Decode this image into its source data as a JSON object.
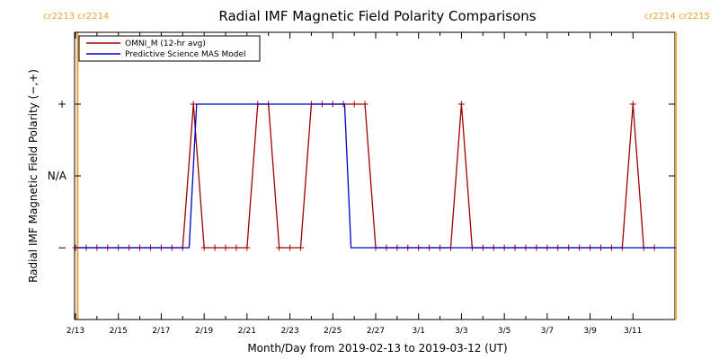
{
  "chart_data": {
    "type": "line",
    "title": "Radial IMF Magnetic Field Polarity Comparisons",
    "xlabel": "Month/Day from 2019-02-13 to 2019-03-12 (UT)",
    "ylabel": "Radial IMF Magnetic Field Polarity (−,+)",
    "x_tick_labels": [
      "2/13",
      "2/15",
      "2/17",
      "2/19",
      "2/21",
      "2/23",
      "2/25",
      "2/27",
      "3/1",
      "3/3",
      "3/5",
      "3/7",
      "3/9",
      "3/11"
    ],
    "y_tick_labels": [
      "−",
      "N/A",
      "+"
    ],
    "y_categories": [
      -1,
      0,
      1
    ],
    "xlim_days": [
      0,
      28
    ],
    "ylim": [
      -2,
      2
    ],
    "x_unit": "days since 2019-02-13 00:00 UT",
    "cr_markers": [
      {
        "day": 0.1,
        "label": "cr2213 cr2214",
        "color": "#f0a030",
        "side": "left"
      },
      {
        "day": 28.0,
        "label": "cr2214 cr2215",
        "color": "#f0a030",
        "side": "right"
      }
    ],
    "legend": {
      "placement": "top-left",
      "entries": [
        {
          "label": "OMNI_M (12-hr avg)",
          "color": "#a00000"
        },
        {
          "label": "Predictive Science MAS Model",
          "color": "#0000cc"
        }
      ]
    },
    "series": [
      {
        "name": "OMNI_M (12-hr avg)",
        "color": "#a00000",
        "marker": "+",
        "points": [
          [
            0.0,
            -1
          ],
          [
            0.5,
            -1
          ],
          [
            1.0,
            -1
          ],
          [
            1.5,
            -1
          ],
          [
            2.0,
            -1
          ],
          [
            2.5,
            -1
          ],
          [
            3.0,
            -1
          ],
          [
            3.5,
            -1
          ],
          [
            4.0,
            -1
          ],
          [
            4.5,
            -1
          ],
          [
            5.0,
            -1
          ],
          [
            5.5,
            1
          ],
          [
            6.0,
            -1
          ],
          [
            6.5,
            -1
          ],
          [
            7.0,
            -1
          ],
          [
            7.5,
            -1
          ],
          [
            8.0,
            -1
          ],
          [
            8.5,
            1
          ],
          [
            9.0,
            1
          ],
          [
            9.5,
            -1
          ],
          [
            10.0,
            -1
          ],
          [
            10.5,
            -1
          ],
          [
            11.0,
            1
          ],
          [
            11.5,
            1
          ],
          [
            12.0,
            1
          ],
          [
            12.5,
            1
          ],
          [
            13.0,
            1
          ],
          [
            13.5,
            1
          ],
          [
            14.0,
            -1
          ],
          [
            14.5,
            -1
          ],
          [
            15.0,
            -1
          ],
          [
            15.5,
            -1
          ],
          [
            16.0,
            -1
          ],
          [
            16.5,
            -1
          ],
          [
            17.0,
            -1
          ],
          [
            17.5,
            -1
          ],
          [
            18.0,
            1
          ],
          [
            18.5,
            -1
          ],
          [
            19.0,
            -1
          ],
          [
            19.5,
            -1
          ],
          [
            20.0,
            -1
          ],
          [
            20.5,
            -1
          ],
          [
            21.0,
            -1
          ],
          [
            21.5,
            -1
          ],
          [
            22.0,
            -1
          ],
          [
            22.5,
            -1
          ],
          [
            23.0,
            -1
          ],
          [
            23.5,
            -1
          ],
          [
            24.0,
            -1
          ],
          [
            24.5,
            -1
          ],
          [
            25.0,
            -1
          ],
          [
            25.5,
            -1
          ],
          [
            26.0,
            1
          ],
          [
            26.5,
            -1
          ],
          [
            27.0,
            -1
          ]
        ]
      },
      {
        "name": "Predictive Science MAS Model",
        "color": "#0000cc",
        "marker": "none",
        "points": [
          [
            0.0,
            -1
          ],
          [
            5.3,
            -1
          ],
          [
            5.65,
            1
          ],
          [
            12.55,
            1
          ],
          [
            12.85,
            -1
          ],
          [
            28.0,
            -1
          ]
        ]
      }
    ]
  }
}
